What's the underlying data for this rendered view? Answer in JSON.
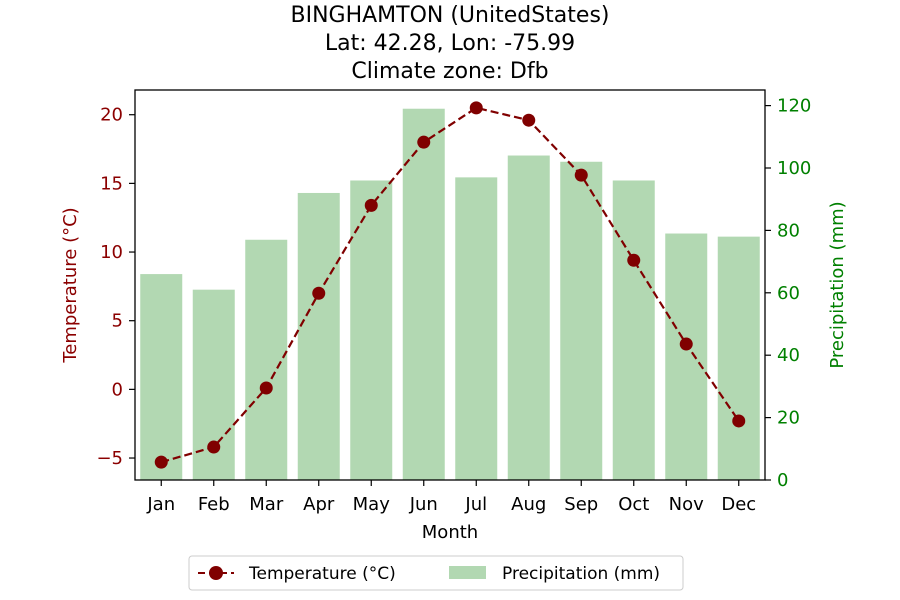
{
  "chart_data": {
    "type": "bar",
    "title_lines": [
      "BINGHAMTON (UnitedStates)",
      "Lat: 42.28, Lon: -75.99",
      "Climate zone: Dfb"
    ],
    "xlabel": "Month",
    "categories": [
      "Jan",
      "Feb",
      "Mar",
      "Apr",
      "May",
      "Jun",
      "Jul",
      "Aug",
      "Sep",
      "Oct",
      "Nov",
      "Dec"
    ],
    "series": [
      {
        "name": "Temperature (°C)",
        "type": "line",
        "axis": "left",
        "color": "#800000",
        "values": [
          -5.3,
          -4.2,
          0.1,
          7.0,
          13.4,
          18.0,
          20.5,
          19.6,
          15.6,
          9.4,
          3.3,
          -2.3
        ]
      },
      {
        "name": "Precipitation (mm)",
        "type": "bar",
        "axis": "right",
        "color": "#b2d8b2",
        "values": [
          66,
          61,
          77,
          92,
          96,
          119,
          97,
          104,
          102,
          96,
          79,
          78
        ]
      }
    ],
    "left_axis": {
      "label": "Temperature (°C)",
      "ylim": [
        -6.6,
        21.8
      ],
      "ticks": [
        -5,
        0,
        5,
        10,
        15,
        20
      ],
      "tick_labels": [
        "−5",
        "0",
        "5",
        "10",
        "15",
        "20"
      ],
      "color": "#8b0000"
    },
    "right_axis": {
      "label": "Precipitation (mm)",
      "ylim": [
        0,
        125
      ],
      "ticks": [
        0,
        20,
        40,
        60,
        80,
        100,
        120
      ],
      "tick_labels": [
        "0",
        "20",
        "40",
        "60",
        "80",
        "100",
        "120"
      ],
      "color": "#008000"
    },
    "grid": false,
    "legend_position": "bottom-center"
  }
}
